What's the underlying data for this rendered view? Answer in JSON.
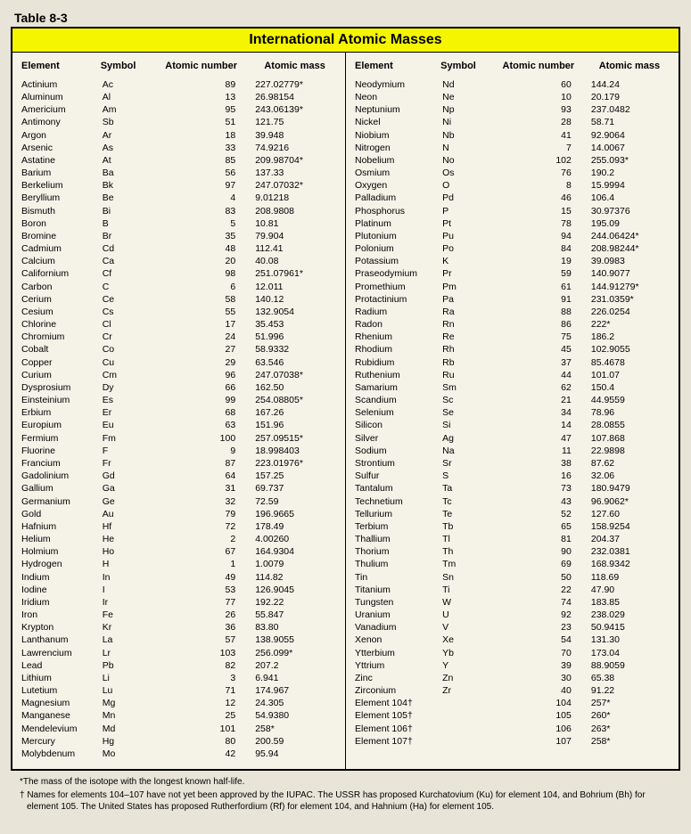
{
  "tableLabel": "Table 8-3",
  "title": "International Atomic Masses",
  "headers": {
    "element": "Element",
    "symbol": "Symbol",
    "number": "Atomic number",
    "mass": "Atomic mass"
  },
  "left": [
    {
      "e": "Actinium",
      "s": "Ac",
      "n": "89",
      "m": "227.02779*"
    },
    {
      "e": "Aluminum",
      "s": "Al",
      "n": "13",
      "m": "26.98154"
    },
    {
      "e": "Americium",
      "s": "Am",
      "n": "95",
      "m": "243.06139*"
    },
    {
      "e": "Antimony",
      "s": "Sb",
      "n": "51",
      "m": "121.75"
    },
    {
      "e": "Argon",
      "s": "Ar",
      "n": "18",
      "m": "39.948"
    },
    {
      "e": "Arsenic",
      "s": "As",
      "n": "33",
      "m": "74.9216"
    },
    {
      "e": "Astatine",
      "s": "At",
      "n": "85",
      "m": "209.98704*"
    },
    {
      "e": "Barium",
      "s": "Ba",
      "n": "56",
      "m": "137.33"
    },
    {
      "e": "Berkelium",
      "s": "Bk",
      "n": "97",
      "m": "247.07032*"
    },
    {
      "e": "Beryllium",
      "s": "Be",
      "n": "4",
      "m": "9.01218"
    },
    {
      "e": "Bismuth",
      "s": "Bi",
      "n": "83",
      "m": "208.9808"
    },
    {
      "e": "Boron",
      "s": "B",
      "n": "5",
      "m": "10.81"
    },
    {
      "e": "Bromine",
      "s": "Br",
      "n": "35",
      "m": "79.904"
    },
    {
      "e": "Cadmium",
      "s": "Cd",
      "n": "48",
      "m": "112.41"
    },
    {
      "e": "Calcium",
      "s": "Ca",
      "n": "20",
      "m": "40.08"
    },
    {
      "e": "Californium",
      "s": "Cf",
      "n": "98",
      "m": "251.07961*"
    },
    {
      "e": "Carbon",
      "s": "C",
      "n": "6",
      "m": "12.011"
    },
    {
      "e": "Cerium",
      "s": "Ce",
      "n": "58",
      "m": "140.12"
    },
    {
      "e": "Cesium",
      "s": "Cs",
      "n": "55",
      "m": "132.9054"
    },
    {
      "e": "Chlorine",
      "s": "Cl",
      "n": "17",
      "m": "35.453"
    },
    {
      "e": "Chromium",
      "s": "Cr",
      "n": "24",
      "m": "51.996"
    },
    {
      "e": "Cobalt",
      "s": "Co",
      "n": "27",
      "m": "58.9332"
    },
    {
      "e": "Copper",
      "s": "Cu",
      "n": "29",
      "m": "63.546"
    },
    {
      "e": "Curium",
      "s": "Cm",
      "n": "96",
      "m": "247.07038*"
    },
    {
      "e": "Dysprosium",
      "s": "Dy",
      "n": "66",
      "m": "162.50"
    },
    {
      "e": "Einsteinium",
      "s": "Es",
      "n": "99",
      "m": "254.08805*"
    },
    {
      "e": "Erbium",
      "s": "Er",
      "n": "68",
      "m": "167.26"
    },
    {
      "e": "Europium",
      "s": "Eu",
      "n": "63",
      "m": "151.96"
    },
    {
      "e": "Fermium",
      "s": "Fm",
      "n": "100",
      "m": "257.09515*"
    },
    {
      "e": "Fluorine",
      "s": "F",
      "n": "9",
      "m": "18.998403"
    },
    {
      "e": "Francium",
      "s": "Fr",
      "n": "87",
      "m": "223.01976*"
    },
    {
      "e": "Gadolinium",
      "s": "Gd",
      "n": "64",
      "m": "157.25"
    },
    {
      "e": "Gallium",
      "s": "Ga",
      "n": "31",
      "m": "69.737"
    },
    {
      "e": "Germanium",
      "s": "Ge",
      "n": "32",
      "m": "72.59"
    },
    {
      "e": "Gold",
      "s": "Au",
      "n": "79",
      "m": "196.9665"
    },
    {
      "e": "Hafnium",
      "s": "Hf",
      "n": "72",
      "m": "178.49"
    },
    {
      "e": "Helium",
      "s": "He",
      "n": "2",
      "m": "4.00260"
    },
    {
      "e": "Holmium",
      "s": "Ho",
      "n": "67",
      "m": "164.9304"
    },
    {
      "e": "Hydrogen",
      "s": "H",
      "n": "1",
      "m": "1.0079"
    },
    {
      "e": "Indium",
      "s": "In",
      "n": "49",
      "m": "114.82"
    },
    {
      "e": "Iodine",
      "s": "I",
      "n": "53",
      "m": "126.9045"
    },
    {
      "e": "Iridium",
      "s": "Ir",
      "n": "77",
      "m": "192.22"
    },
    {
      "e": "Iron",
      "s": "Fe",
      "n": "26",
      "m": "55.847"
    },
    {
      "e": "Krypton",
      "s": "Kr",
      "n": "36",
      "m": "83.80"
    },
    {
      "e": "Lanthanum",
      "s": "La",
      "n": "57",
      "m": "138.9055"
    },
    {
      "e": "Lawrencium",
      "s": "Lr",
      "n": "103",
      "m": "256.099*"
    },
    {
      "e": "Lead",
      "s": "Pb",
      "n": "82",
      "m": "207.2"
    },
    {
      "e": "Lithium",
      "s": "Li",
      "n": "3",
      "m": "6.941"
    },
    {
      "e": "Lutetium",
      "s": "Lu",
      "n": "71",
      "m": "174.967"
    },
    {
      "e": "Magnesium",
      "s": "Mg",
      "n": "12",
      "m": "24.305"
    },
    {
      "e": "Manganese",
      "s": "Mn",
      "n": "25",
      "m": "54.9380"
    },
    {
      "e": "Mendelevium",
      "s": "Md",
      "n": "101",
      "m": "258*"
    },
    {
      "e": "Mercury",
      "s": "Hg",
      "n": "80",
      "m": "200.59"
    },
    {
      "e": "Molybdenum",
      "s": "Mo",
      "n": "42",
      "m": "95.94"
    }
  ],
  "right": [
    {
      "e": "Neodymium",
      "s": "Nd",
      "n": "60",
      "m": "144.24"
    },
    {
      "e": "Neon",
      "s": "Ne",
      "n": "10",
      "m": "20.179"
    },
    {
      "e": "Neptunium",
      "s": "Np",
      "n": "93",
      "m": "237.0482"
    },
    {
      "e": "Nickel",
      "s": "Ni",
      "n": "28",
      "m": "58.71"
    },
    {
      "e": "Niobium",
      "s": "Nb",
      "n": "41",
      "m": "92.9064"
    },
    {
      "e": "Nitrogen",
      "s": "N",
      "n": "7",
      "m": "14.0067"
    },
    {
      "e": "Nobelium",
      "s": "No",
      "n": "102",
      "m": "255.093*"
    },
    {
      "e": "Osmium",
      "s": "Os",
      "n": "76",
      "m": "190.2"
    },
    {
      "e": "Oxygen",
      "s": "O",
      "n": "8",
      "m": "15.9994"
    },
    {
      "e": "Palladium",
      "s": "Pd",
      "n": "46",
      "m": "106.4"
    },
    {
      "e": "Phosphorus",
      "s": "P",
      "n": "15",
      "m": "30.97376"
    },
    {
      "e": "Platinum",
      "s": "Pt",
      "n": "78",
      "m": "195.09"
    },
    {
      "e": "Plutonium",
      "s": "Pu",
      "n": "94",
      "m": "244.06424*"
    },
    {
      "e": "Polonium",
      "s": "Po",
      "n": "84",
      "m": "208.98244*"
    },
    {
      "e": "Potassium",
      "s": "K",
      "n": "19",
      "m": "39.0983"
    },
    {
      "e": "Praseodymium",
      "s": "Pr",
      "n": "59",
      "m": "140.9077"
    },
    {
      "e": "Promethium",
      "s": "Pm",
      "n": "61",
      "m": "144.91279*"
    },
    {
      "e": "Protactinium",
      "s": "Pa",
      "n": "91",
      "m": "231.0359*"
    },
    {
      "e": "Radium",
      "s": "Ra",
      "n": "88",
      "m": "226.0254"
    },
    {
      "e": "Radon",
      "s": "Rn",
      "n": "86",
      "m": "222*"
    },
    {
      "e": "Rhenium",
      "s": "Re",
      "n": "75",
      "m": "186.2"
    },
    {
      "e": "Rhodium",
      "s": "Rh",
      "n": "45",
      "m": "102.9055"
    },
    {
      "e": "Rubidium",
      "s": "Rb",
      "n": "37",
      "m": "85.4678"
    },
    {
      "e": "Ruthenium",
      "s": "Ru",
      "n": "44",
      "m": "101.07"
    },
    {
      "e": "Samarium",
      "s": "Sm",
      "n": "62",
      "m": "150.4"
    },
    {
      "e": "Scandium",
      "s": "Sc",
      "n": "21",
      "m": "44.9559"
    },
    {
      "e": "Selenium",
      "s": "Se",
      "n": "34",
      "m": "78.96"
    },
    {
      "e": "Silicon",
      "s": "Si",
      "n": "14",
      "m": "28.0855"
    },
    {
      "e": "Silver",
      "s": "Ag",
      "n": "47",
      "m": "107.868"
    },
    {
      "e": "Sodium",
      "s": "Na",
      "n": "11",
      "m": "22.9898"
    },
    {
      "e": "Strontium",
      "s": "Sr",
      "n": "38",
      "m": "87.62"
    },
    {
      "e": "Sulfur",
      "s": "S",
      "n": "16",
      "m": "32.06"
    },
    {
      "e": "Tantalum",
      "s": "Ta",
      "n": "73",
      "m": "180.9479"
    },
    {
      "e": "Technetium",
      "s": "Tc",
      "n": "43",
      "m": "96.9062*"
    },
    {
      "e": "Tellurium",
      "s": "Te",
      "n": "52",
      "m": "127.60"
    },
    {
      "e": "Terbium",
      "s": "Tb",
      "n": "65",
      "m": "158.9254"
    },
    {
      "e": "Thallium",
      "s": "Tl",
      "n": "81",
      "m": "204.37"
    },
    {
      "e": "Thorium",
      "s": "Th",
      "n": "90",
      "m": "232.0381"
    },
    {
      "e": "Thulium",
      "s": "Tm",
      "n": "69",
      "m": "168.9342"
    },
    {
      "e": "Tin",
      "s": "Sn",
      "n": "50",
      "m": "118.69"
    },
    {
      "e": "Titanium",
      "s": "Ti",
      "n": "22",
      "m": "47.90"
    },
    {
      "e": "Tungsten",
      "s": "W",
      "n": "74",
      "m": "183.85"
    },
    {
      "e": "Uranium",
      "s": "U",
      "n": "92",
      "m": "238.029"
    },
    {
      "e": "Vanadium",
      "s": "V",
      "n": "23",
      "m": "50.9415"
    },
    {
      "e": "Xenon",
      "s": "Xe",
      "n": "54",
      "m": "131.30"
    },
    {
      "e": "Ytterbium",
      "s": "Yb",
      "n": "70",
      "m": "173.04"
    },
    {
      "e": "Yttrium",
      "s": "Y",
      "n": "39",
      "m": "88.9059"
    },
    {
      "e": "Zinc",
      "s": "Zn",
      "n": "30",
      "m": "65.38"
    },
    {
      "e": "Zirconium",
      "s": "Zr",
      "n": "40",
      "m": "91.22"
    },
    {
      "e": "Element 104†",
      "s": "",
      "n": "104",
      "m": "257*"
    },
    {
      "e": "Element 105†",
      "s": "",
      "n": "105",
      "m": "260*"
    },
    {
      "e": "Element 106†",
      "s": "",
      "n": "106",
      "m": "263*"
    },
    {
      "e": "Element 107†",
      "s": "",
      "n": "107",
      "m": "258*"
    }
  ],
  "footnote1": "*The mass of the isotope with the longest known half-life.",
  "footnote2": "† Names for elements 104–107 have not yet been approved by the IUPAC. The USSR has proposed Kurchatovium (Ku) for element 104, and Bohrium (Bh) for element 105. The United States has proposed Rutherfordium (Rf) for element 104, and Hahnium (Ha) for element 105."
}
